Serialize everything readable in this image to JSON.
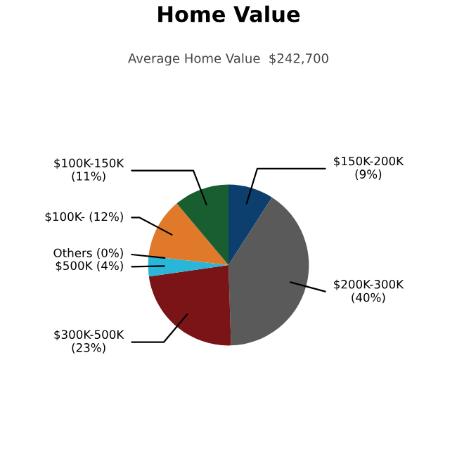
{
  "chart_data": {
    "type": "pie",
    "title": "Home Value",
    "subtitle": "Average Home Value  $242,700",
    "categories": [
      "$150K-200K",
      "$200K-300K",
      "$300K-500K",
      "$500K",
      "Others",
      "$100K-",
      "$100K-150K"
    ],
    "values": [
      9,
      40,
      23,
      4,
      0,
      12,
      11
    ],
    "value_labels": [
      "(9%)",
      "(40%)",
      "(23%)",
      "(4%)",
      "(0%)",
      "(12%)",
      "(11%)"
    ],
    "colors": [
      "#0d3f6e",
      "#5a5a5a",
      "#7a1416",
      "#29b6d9",
      "#9aa33a",
      "#e07a2a",
      "#195e30"
    ]
  }
}
